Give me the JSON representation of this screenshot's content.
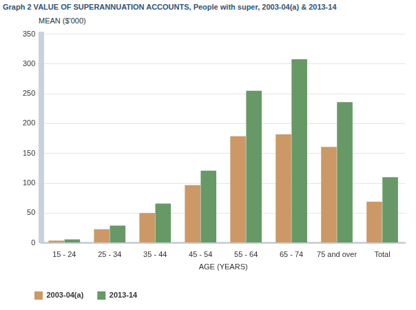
{
  "chart_data": {
    "type": "bar",
    "title": "Graph 2 VALUE OF SUPERANNUATION ACCOUNTS, People with super, 2003-04(a) & 2013-14",
    "y_label": "MEAN ($'000)",
    "x_label": "AGE (YEARS)",
    "categories": [
      "15 - 24",
      "25 - 34",
      "35 - 44",
      "45 - 54",
      "55 - 64",
      "65 - 74",
      "75 and over",
      "Total"
    ],
    "series": [
      {
        "name": "2003-04(a)",
        "color": "#cc9966",
        "values": [
          4,
          23,
          50,
          97,
          179,
          182,
          161,
          69
        ]
      },
      {
        "name": "2013-14",
        "color": "#669966",
        "values": [
          6,
          29,
          66,
          121,
          255,
          308,
          236,
          110
        ]
      }
    ],
    "ylim": [
      0,
      350
    ],
    "yticks": [
      0,
      50,
      100,
      150,
      200,
      250,
      300,
      350
    ],
    "grid": true,
    "legend": "bottom-left"
  }
}
